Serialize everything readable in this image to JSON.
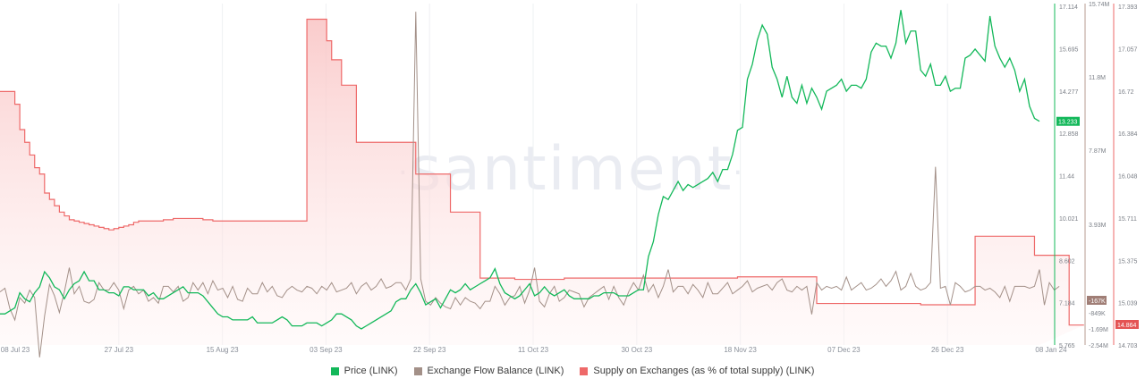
{
  "watermark": "santiment",
  "colors": {
    "price": "#13b85a",
    "flow": "#a39088",
    "supply": "#ee6969",
    "supply_fill": "#fde4e4",
    "price_badge": "#13b85a",
    "flow_badge": "#a07e76",
    "supply_badge": "#e45454"
  },
  "legend": [
    {
      "label": "Price (LINK)",
      "color": "#13b85a"
    },
    {
      "label": "Exchange Flow Balance (LINK)",
      "color": "#a39088"
    },
    {
      "label": "Supply on Exchanges (as % of total supply) (LINK)",
      "color": "#ee6969"
    }
  ],
  "badges": {
    "price": "13.233",
    "flow": "-167K",
    "supply": "14.864"
  },
  "chart_data": {
    "type": "line",
    "title": "",
    "x_ticks": [
      "08 Jul 23",
      "27 Jul 23",
      "15 Aug 23",
      "03 Sep 23",
      "22 Sep 23",
      "11 Oct 23",
      "30 Oct 23",
      "18 Nov 23",
      "07 Dec 23",
      "26 Dec 23",
      "08 Jan 24"
    ],
    "price_axis": {
      "ticks": [
        "17.114",
        "15.695",
        "14.277",
        "12.858",
        "11.44",
        "10.021",
        "8.602",
        "7.184",
        "5.765"
      ],
      "range": [
        5.765,
        17.114
      ]
    },
    "flow_axis": {
      "ticks": [
        "15.74M",
        "11.8M",
        "7.87M",
        "3.93M",
        "-849K",
        "-1.69M",
        "-2.54M"
      ],
      "range": [
        -2540000,
        15740000
      ]
    },
    "supply_axis": {
      "ticks": [
        "17.393",
        "17.057",
        "16.72",
        "16.384",
        "16.048",
        "15.711",
        "15.375",
        "15.039",
        "14.703"
      ],
      "range": [
        14.703,
        17.393
      ]
    },
    "grid": "vertical",
    "legend_position": "bottom",
    "series": [
      {
        "name": "Price (LINK)",
        "axis": "price",
        "values": [
          6.8,
          6.8,
          6.9,
          7.0,
          7.5,
          7.3,
          7.2,
          7.5,
          7.7,
          8.2,
          8.0,
          7.7,
          7.6,
          7.3,
          7.6,
          7.8,
          7.9,
          8.2,
          7.9,
          7.9,
          7.6,
          7.6,
          7.5,
          7.5,
          7.4,
          7.7,
          7.7,
          7.6,
          7.6,
          7.6,
          7.4,
          7.5,
          7.3,
          7.3,
          7.4,
          7.5,
          7.6,
          7.7,
          7.5,
          7.5,
          7.5,
          7.4,
          7.2,
          7.0,
          6.8,
          6.7,
          6.7,
          6.6,
          6.6,
          6.6,
          6.6,
          6.7,
          6.5,
          6.5,
          6.5,
          6.5,
          6.6,
          6.7,
          6.6,
          6.4,
          6.4,
          6.4,
          6.5,
          6.5,
          6.5,
          6.4,
          6.5,
          6.6,
          6.8,
          6.8,
          6.7,
          6.6,
          6.4,
          6.3,
          6.4,
          6.5,
          6.6,
          6.7,
          6.8,
          6.9,
          7.2,
          7.3,
          7.3,
          7.6,
          7.8,
          7.5,
          7.1,
          7.2,
          7.3,
          7.0,
          7.3,
          7.6,
          7.5,
          7.6,
          7.8,
          7.6,
          7.7,
          7.8,
          7.9,
          8.0,
          8.3,
          7.8,
          7.5,
          7.4,
          7.3,
          7.4,
          7.6,
          7.8,
          7.4,
          7.5,
          7.7,
          7.5,
          7.4,
          7.5,
          7.6,
          7.4,
          7.3,
          7.3,
          7.3,
          7.3,
          7.4,
          7.4,
          7.5,
          7.5,
          7.5,
          7.4,
          7.4,
          7.4,
          7.5,
          7.6,
          7.6,
          8.7,
          9.2,
          10.1,
          10.7,
          10.6,
          10.9,
          11.2,
          10.9,
          11.1,
          11.0,
          11.1,
          11.2,
          11.3,
          11.5,
          11.2,
          11.6,
          11.6,
          12.1,
          12.9,
          13.0,
          14.6,
          15.1,
          15.9,
          16.4,
          16.1,
          15.0,
          14.6,
          14.0,
          14.7,
          14.0,
          13.8,
          14.4,
          13.8,
          14.3,
          14.0,
          13.6,
          14.2,
          14.3,
          14.4,
          14.6,
          14.2,
          14.4,
          14.4,
          14.3,
          14.6,
          15.5,
          15.8,
          15.7,
          15.7,
          15.3,
          15.8,
          16.9,
          15.8,
          16.2,
          16.2,
          14.9,
          14.7,
          15.1,
          14.4,
          14.4,
          14.7,
          14.2,
          14.3,
          14.3,
          15.3,
          15.4,
          15.6,
          15.4,
          15.2,
          16.7,
          15.7,
          15.3,
          15.0,
          15.3,
          14.9,
          14.2,
          14.6,
          13.7,
          13.3,
          13.2
        ]
      },
      {
        "name": "Exchange Flow Balance (LINK)",
        "axis": "flow",
        "values": [
          0.3,
          0.5,
          -0.6,
          -1.2,
          0.0,
          -0.3,
          0.4,
          0.0,
          -3.2,
          -1.0,
          0.7,
          0.1,
          -0.8,
          0.3,
          1.6,
          0.2,
          0.6,
          -0.2,
          -0.3,
          -0.1,
          0.8,
          0.4,
          0.4,
          0.8,
          0.4,
          -0.6,
          0.4,
          0.6,
          0.2,
          0.4,
          -0.2,
          0.0,
          -0.3,
          0.6,
          0.6,
          0.3,
          0.6,
          -0.2,
          0.0,
          0.8,
          0.4,
          0.8,
          0.2,
          0.9,
          0.4,
          0.5,
          0.0,
          0.6,
          -0.1,
          -0.2,
          0.5,
          0.2,
          0.2,
          0.8,
          0.3,
          0.6,
          0.1,
          0.0,
          0.4,
          0.6,
          0.4,
          0.3,
          0.6,
          0.5,
          0.2,
          0.6,
          0.4,
          0.8,
          0.3,
          0.4,
          0.5,
          0.8,
          0.2,
          0.6,
          0.8,
          0.4,
          0.6,
          1.0,
          0.5,
          0.6,
          0.8,
          0.8,
          0.4,
          1.0,
          15.3,
          1.0,
          -0.2,
          -0.4,
          0.0,
          -0.3,
          -0.5,
          -0.6,
          0.0,
          -0.4,
          0.0,
          -0.2,
          -0.3,
          -0.6,
          -0.2,
          -0.2,
          0.6,
          0.2,
          -0.4,
          0.0,
          0.1,
          0.6,
          -0.3,
          0.4,
          1.6,
          -0.2,
          -0.5,
          0.2,
          0.6,
          -0.2,
          0.0,
          0.4,
          0.3,
          0.2,
          -0.5,
          0.0,
          0.2,
          0.4,
          0.6,
          -0.1,
          0.6,
          0.0,
          -0.4,
          0.3,
          0.8,
          0.4,
          1.2,
          0.3,
          0.7,
          0.0,
          0.6,
          1.5,
          0.3,
          0.6,
          0.6,
          0.2,
          0.7,
          0.4,
          0.0,
          0.8,
          0.2,
          0.2,
          0.5,
          0.8,
          0.2,
          0.4,
          0.6,
          0.9,
          0.3,
          0.5,
          0.6,
          0.7,
          0.4,
          0.8,
          1.0,
          0.4,
          0.3,
          0.6,
          0.4,
          0.6,
          -0.9,
          0.8,
          0.4,
          0.6,
          0.5,
          0.6,
          0.4,
          1.1,
          0.4,
          0.6,
          0.8,
          0.4,
          0.5,
          0.7,
          1.0,
          0.6,
          0.9,
          1.4,
          0.4,
          0.6,
          1.3,
          0.6,
          0.4,
          0.5,
          0.8,
          7.0,
          0.5,
          0.6,
          -0.4,
          0.8,
          0.6,
          0.3,
          0.4,
          0.6,
          0.6,
          0.4,
          0.5,
          0.3,
          0.0,
          0.6,
          -0.2,
          0.6,
          0.6,
          0.6,
          0.5,
          0.6,
          1.5,
          -0.4,
          0.8,
          0.4,
          0.6
        ]
      },
      {
        "name": "Supply on Exchanges (as % of total supply) (LINK)",
        "axis": "supply",
        "values": [
          16.7,
          16.7,
          16.7,
          16.6,
          16.4,
          16.3,
          16.2,
          16.1,
          16.05,
          15.9,
          15.85,
          15.8,
          15.75,
          15.72,
          15.69,
          15.68,
          15.67,
          15.66,
          15.65,
          15.64,
          15.63,
          15.62,
          15.61,
          15.62,
          15.63,
          15.64,
          15.65,
          15.67,
          15.68,
          15.68,
          15.68,
          15.68,
          15.68,
          15.69,
          15.69,
          15.7,
          15.7,
          15.7,
          15.7,
          15.7,
          15.7,
          15.69,
          15.69,
          15.68,
          15.68,
          15.68,
          15.68,
          15.68,
          15.68,
          15.68,
          15.68,
          15.68,
          15.68,
          15.68,
          15.68,
          15.68,
          15.68,
          15.68,
          15.68,
          15.68,
          15.68,
          15.68,
          17.27,
          17.27,
          17.27,
          17.27,
          17.1,
          16.95,
          16.95,
          16.75,
          16.75,
          16.75,
          16.3,
          16.3,
          16.3,
          16.3,
          16.3,
          16.3,
          16.3,
          16.3,
          16.3,
          16.3,
          16.3,
          16.3,
          16.05,
          16.05,
          16.05,
          16.05,
          16.05,
          16.05,
          16.05,
          15.75,
          15.75,
          15.75,
          15.75,
          15.75,
          15.75,
          15.23,
          15.23,
          15.23,
          15.23,
          15.23,
          15.23,
          15.23,
          15.22,
          15.22,
          15.22,
          15.22,
          15.22,
          15.22,
          15.22,
          15.22,
          15.22,
          15.22,
          15.23,
          15.23,
          15.23,
          15.23,
          15.23,
          15.23,
          15.23,
          15.23,
          15.23,
          15.23,
          15.23,
          15.23,
          15.23,
          15.23,
          15.23,
          15.23,
          15.23,
          15.23,
          15.23,
          15.23,
          15.23,
          15.23,
          15.23,
          15.23,
          15.23,
          15.23,
          15.23,
          15.23,
          15.23,
          15.23,
          15.23,
          15.23,
          15.23,
          15.23,
          15.23,
          15.24,
          15.24,
          15.24,
          15.24,
          15.24,
          15.24,
          15.24,
          15.24,
          15.24,
          15.24,
          15.24,
          15.24,
          15.24,
          15.24,
          15.24,
          15.24,
          15.03,
          15.03,
          15.03,
          15.03,
          15.03,
          15.03,
          15.03,
          15.03,
          15.03,
          15.03,
          15.03,
          15.03,
          15.03,
          15.03,
          15.03,
          15.03,
          15.03,
          15.03,
          15.03,
          15.03,
          15.03,
          15.02,
          15.02,
          15.02,
          15.02,
          15.02,
          15.02,
          15.02,
          15.02,
          15.02,
          15.02,
          15.02,
          15.56,
          15.56,
          15.56,
          15.56,
          15.56,
          15.56,
          15.56,
          15.56,
          15.56,
          15.56,
          15.56,
          15.56,
          15.41,
          15.41,
          15.41,
          15.41,
          15.41,
          15.41,
          15.41,
          14.86,
          14.86,
          14.86,
          14.86
        ]
      }
    ]
  }
}
